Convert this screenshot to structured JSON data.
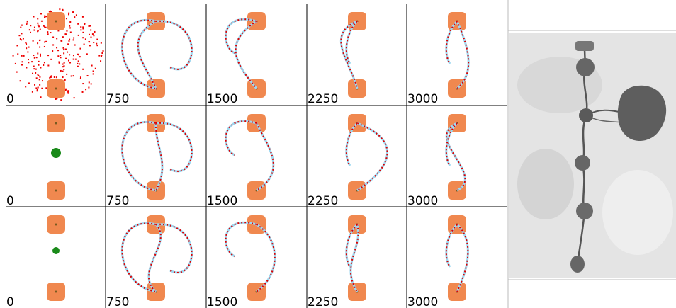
{
  "rows": [
    [
      "0",
      "750",
      "1500",
      "2250",
      "3000"
    ],
    [
      "0",
      "750",
      "1500",
      "2250",
      "3000"
    ],
    [
      "0",
      "750",
      "1500",
      "2250",
      "3000"
    ]
  ]
}
